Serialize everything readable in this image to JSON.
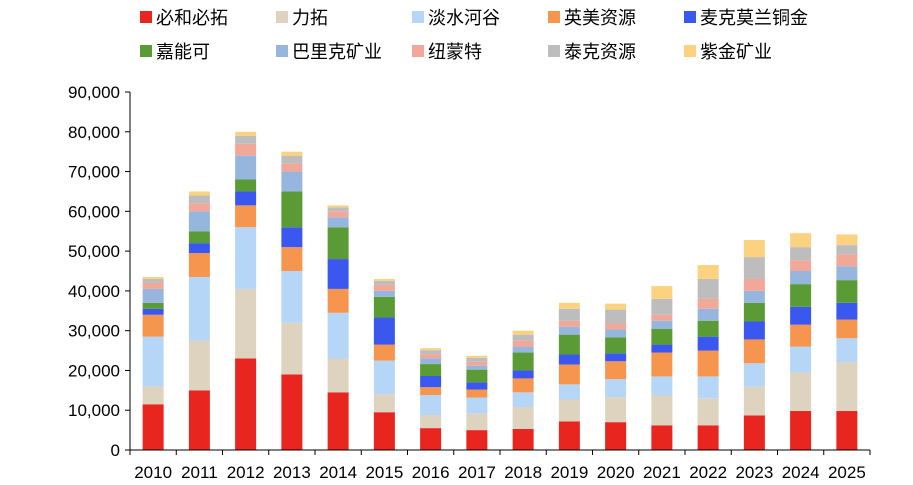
{
  "chart_data": {
    "type": "bar",
    "stacked": true,
    "title": "",
    "xlabel": "",
    "ylabel": "",
    "ylim": [
      0,
      90000
    ],
    "yticks": [
      0,
      10000,
      20000,
      30000,
      40000,
      50000,
      60000,
      70000,
      80000,
      90000
    ],
    "ytick_labels": [
      "0",
      "10,000",
      "20,000",
      "30,000",
      "40,000",
      "50,000",
      "60,000",
      "70,000",
      "80,000",
      "90,000"
    ],
    "grid": false,
    "legend_position": "top",
    "categories": [
      "2010",
      "2011",
      "2012",
      "2013",
      "2014",
      "2015",
      "2016",
      "2017",
      "2018",
      "2019",
      "2020",
      "2021",
      "2022",
      "2023",
      "2024",
      "2025"
    ],
    "series": [
      {
        "name": "必和必拓",
        "color": "#e8251f",
        "values": [
          11500,
          15000,
          23000,
          19000,
          14500,
          9500,
          5500,
          5000,
          5300,
          7200,
          7000,
          6200,
          6200,
          8700,
          9800,
          9800
        ]
      },
      {
        "name": "力拓",
        "color": "#ddd3bf",
        "values": [
          4500,
          12500,
          17500,
          13000,
          8500,
          4500,
          3300,
          4200,
          5500,
          5500,
          6300,
          7500,
          6800,
          7200,
          9700,
          12300
        ]
      },
      {
        "name": "淡水河谷",
        "color": "#b6d6f7",
        "values": [
          12500,
          16000,
          15500,
          13000,
          11500,
          8500,
          5000,
          4000,
          3700,
          3800,
          4500,
          4800,
          5500,
          5900,
          6500,
          6000
        ]
      },
      {
        "name": "英美资源",
        "color": "#f6954d",
        "values": [
          5500,
          6000,
          5500,
          6000,
          6000,
          4000,
          2000,
          2000,
          3500,
          5000,
          4500,
          6000,
          6500,
          6000,
          5500,
          4700
        ]
      },
      {
        "name": "麦克莫兰铜金",
        "color": "#3a57f0",
        "values": [
          1500,
          2500,
          3500,
          5000,
          7500,
          6800,
          2800,
          1800,
          2000,
          2500,
          2000,
          2000,
          3500,
          4500,
          4500,
          4200
        ]
      },
      {
        "name": "嘉能可",
        "color": "#5a9b35",
        "values": [
          1500,
          3000,
          3000,
          9000,
          8000,
          5200,
          3000,
          3200,
          4500,
          5000,
          4000,
          4000,
          4000,
          4700,
          5700,
          5700
        ]
      },
      {
        "name": "巴里克矿业",
        "color": "#97b6de",
        "values": [
          3500,
          5000,
          6000,
          5000,
          2500,
          1500,
          1500,
          1000,
          1500,
          2000,
          2000,
          2000,
          3000,
          3000,
          3300,
          3500
        ]
      },
      {
        "name": "纽蒙特",
        "color": "#f2a899",
        "values": [
          1500,
          2000,
          3000,
          2000,
          1500,
          1500,
          1000,
          1000,
          1500,
          1500,
          1500,
          1500,
          2500,
          3000,
          2700,
          3000
        ]
      },
      {
        "name": "泰克资源",
        "color": "#bdbdbd",
        "values": [
          1000,
          2000,
          2000,
          2000,
          1000,
          1000,
          1000,
          1000,
          1500,
          3000,
          3500,
          4000,
          5000,
          5500,
          3300,
          2300
        ]
      },
      {
        "name": "紫金矿业",
        "color": "#fbd280",
        "values": [
          500,
          1000,
          1000,
          1000,
          500,
          500,
          500,
          500,
          1000,
          1500,
          1500,
          3200,
          3500,
          4300,
          3500,
          2700
        ]
      }
    ]
  }
}
